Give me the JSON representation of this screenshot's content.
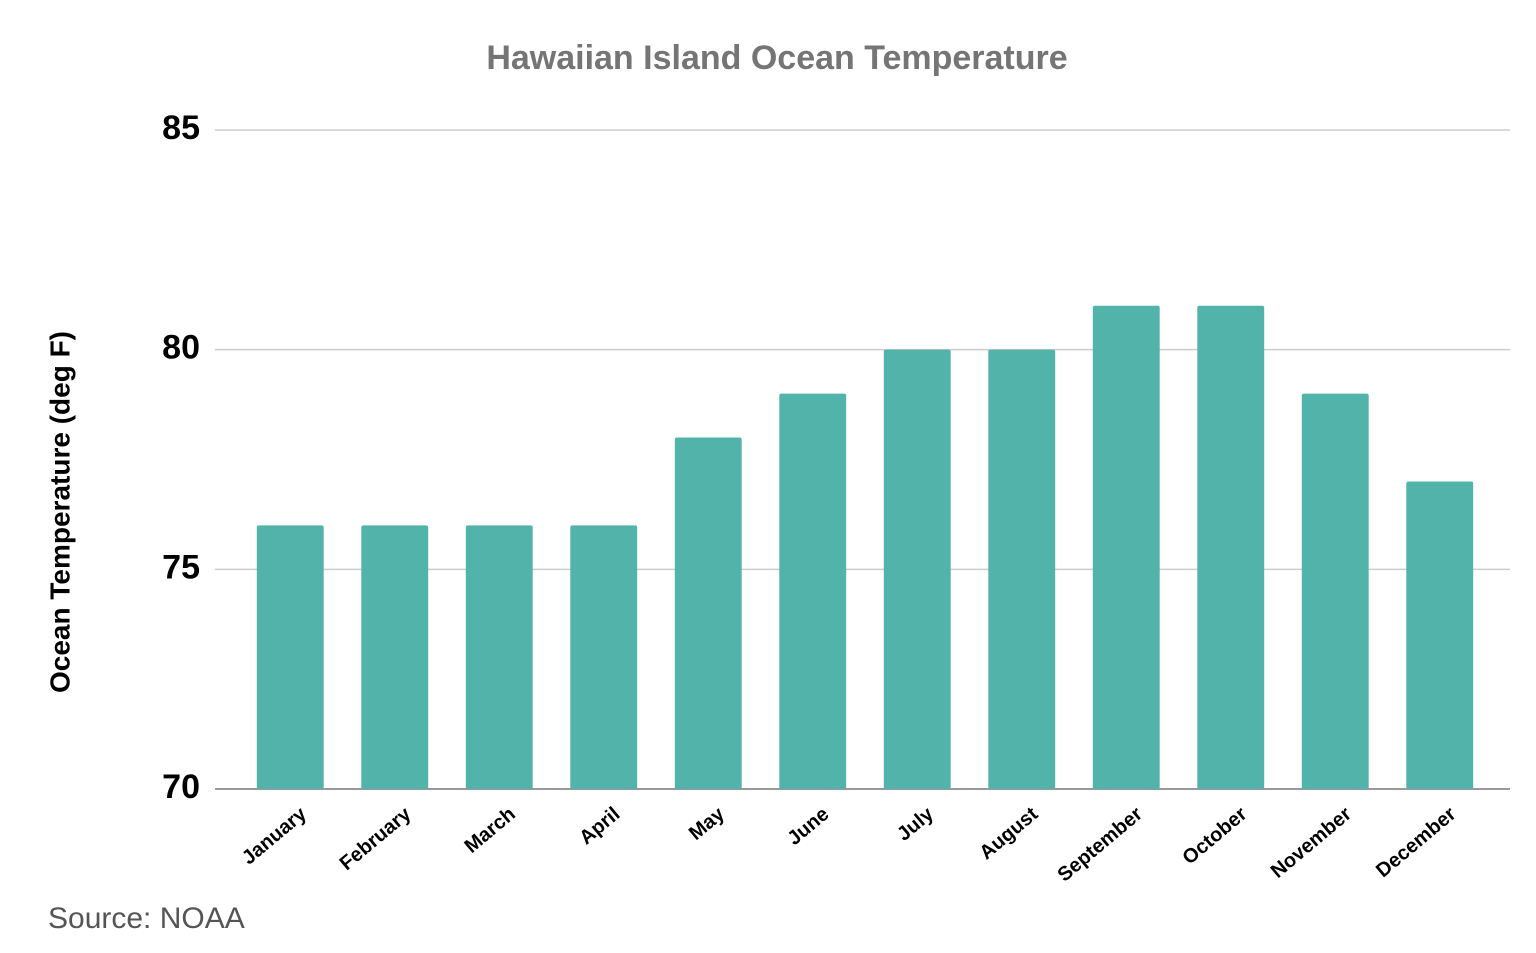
{
  "chart_data": {
    "type": "bar",
    "title": "Hawaiian Island Ocean Temperature",
    "y_label": "Ocean Temperature (deg F)",
    "categories": [
      "January",
      "February",
      "March",
      "April",
      "May",
      "June",
      "July",
      "August",
      "September",
      "October",
      "November",
      "December"
    ],
    "values": [
      76,
      76,
      76,
      76,
      78,
      79,
      80,
      80,
      81,
      81,
      79,
      77
    ],
    "color": "#52b3ab",
    "ylim": [
      70,
      85
    ],
    "yticks": [
      70,
      75,
      80,
      85
    ],
    "grid": true,
    "source": "Source: NOAA"
  }
}
